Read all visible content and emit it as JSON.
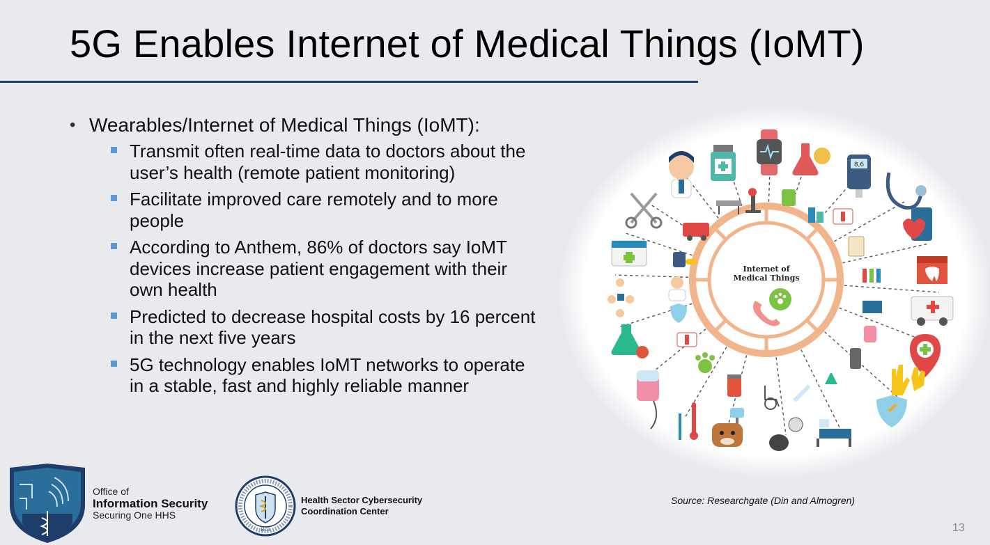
{
  "slide": {
    "title": "5G Enables Internet of Medical Things (IoMT)",
    "page_number": "13",
    "source": "Source: Researchgate (Din and Almogren)"
  },
  "bullets": {
    "main": "Wearables/Internet of Medical Things (IoMT):",
    "sub": [
      "Transmit often real-time data to doctors about the user’s health (remote patient monitoring)",
      "Facilitate improved care remotely and to more people",
      "According to Anthem, 86% of doctors say IoMT devices increase patient engagement with their own health",
      "Predicted to decrease hospital costs by 16 percent in the next five years",
      "5G technology enables IoMT networks to operate in a stable, fast and highly reliable manner"
    ]
  },
  "diagram": {
    "center_label_line1": "Internet of",
    "center_label_line2": "Medical Things",
    "device_readout": "8,6"
  },
  "footer": {
    "ois_line1": "Office of",
    "ois_line2": "Information Security",
    "ois_line3": "Securing One HHS",
    "hc3_line1": "Health Sector Cybersecurity",
    "hc3_line2": "Coordination Center",
    "seal_label": "HC3"
  },
  "colors": {
    "title_rule": "#1f3d6b",
    "bullet_square": "#5b9bd5",
    "ring": "#f2b48a",
    "shield_blue": "#2a6f9a"
  }
}
